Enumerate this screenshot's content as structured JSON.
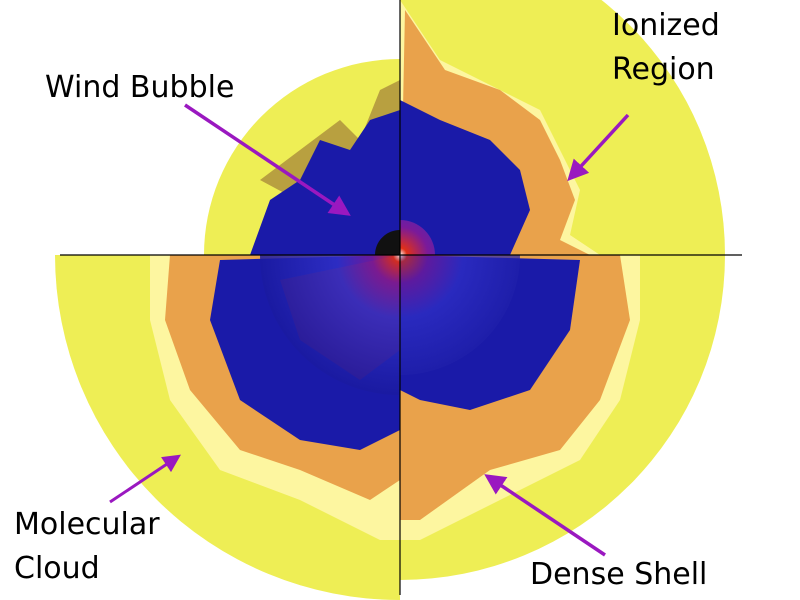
{
  "labels": {
    "wind_bubble": "Wind Bubble",
    "ionized_region_line1": "Ionized",
    "ionized_region_line2": "Region",
    "molecular_cloud_line1": "Molecular",
    "molecular_cloud_line2": "Cloud",
    "dense_shell": "Dense Shell"
  },
  "colors": {
    "molecular_cloud": "#eeee55",
    "dense_shell": "#fdf6a0",
    "ionized_region": "#e9a24b",
    "wind_bubble": "#1a1aa8",
    "hot_core": "#c8201a",
    "arrow": "#9a18c0"
  }
}
